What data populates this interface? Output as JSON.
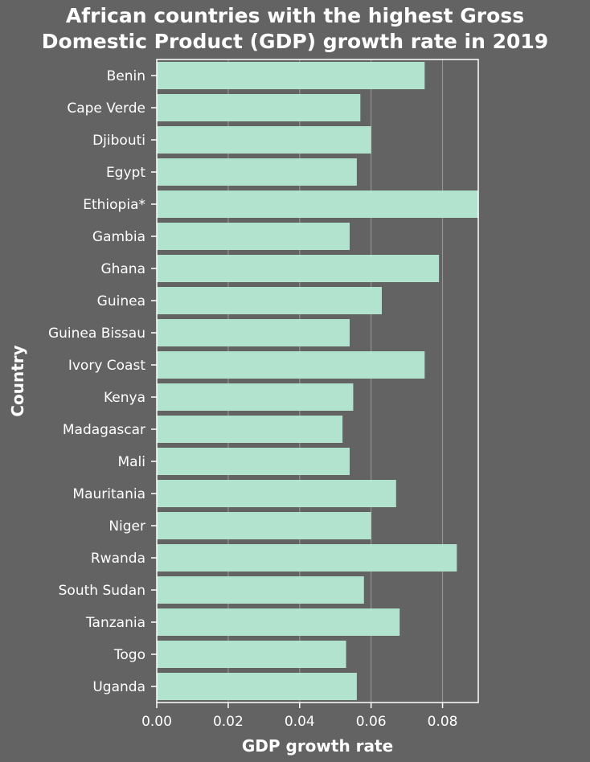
{
  "chart_data": {
    "type": "bar",
    "orientation": "horizontal",
    "title_lines": [
      "African countries with the highest Gross",
      "Domestic Product (GDP) growth rate in 2019"
    ],
    "xlabel": "GDP growth rate",
    "ylabel": "Country",
    "xlim": [
      0,
      0.09
    ],
    "xticks": [
      "0.00",
      "0.02",
      "0.04",
      "0.06",
      "0.08"
    ],
    "grid": "vertical",
    "bar_color": "#b2e3cf",
    "background_color": "#636363",
    "categories": [
      "Benin",
      "Cape Verde",
      "Djibouti",
      "Egypt",
      "Ethiopia*",
      "Gambia",
      "Ghana",
      "Guinea",
      "Guinea Bissau",
      "Ivory Coast",
      "Kenya",
      "Madagascar",
      "Mali",
      "Mauritania",
      "Niger",
      "Rwanda",
      "South Sudan",
      "Tanzania",
      "Togo",
      "Uganda"
    ],
    "values": [
      0.075,
      0.057,
      0.06,
      0.056,
      0.09,
      0.054,
      0.079,
      0.063,
      0.054,
      0.075,
      0.055,
      0.052,
      0.054,
      0.067,
      0.06,
      0.084,
      0.058,
      0.068,
      0.053,
      0.056
    ]
  }
}
